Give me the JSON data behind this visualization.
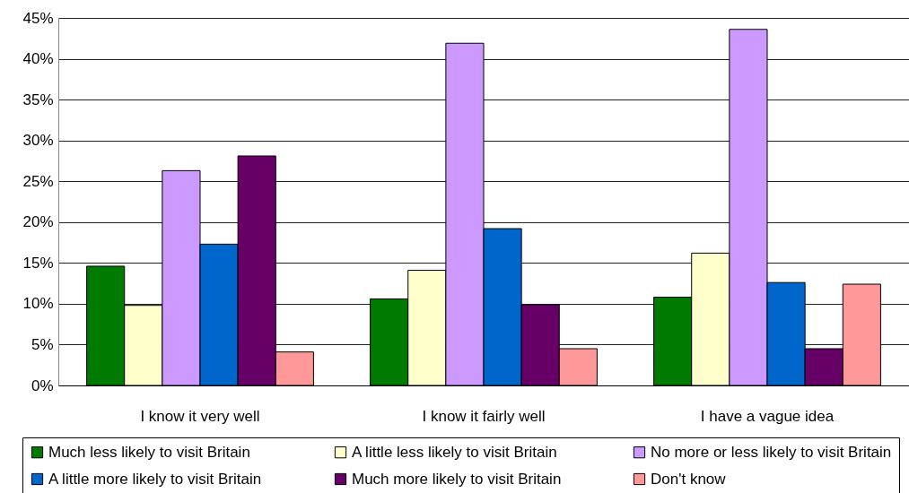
{
  "chart_data": {
    "type": "bar",
    "categories": [
      "I know it very well",
      "I know it fairly well",
      "I have a vague idea"
    ],
    "series": [
      {
        "name": "Much less likely to visit Britain",
        "color": "#007a00",
        "values": [
          14.6,
          10.6,
          10.8
        ]
      },
      {
        "name": "A little less likely to visit Britain",
        "color": "#ffffcc",
        "values": [
          9.8,
          14.1,
          16.2
        ]
      },
      {
        "name": "No more or less likely to visit Britain",
        "color": "#cc99ff",
        "values": [
          26.3,
          41.9,
          43.6
        ]
      },
      {
        "name": "A little more likely to visit Britain",
        "color": "#0066cc",
        "values": [
          17.3,
          19.2,
          12.6
        ]
      },
      {
        "name": "Much more likely to visit Britain",
        "color": "#660066",
        "values": [
          28.1,
          9.9,
          4.5
        ]
      },
      {
        "name": "Don't know",
        "color": "#ff9999",
        "values": [
          4.1,
          4.5,
          12.4
        ]
      }
    ],
    "ylim": [
      0,
      45
    ],
    "yticks": [
      {
        "value": 0,
        "label": "0%"
      },
      {
        "value": 5,
        "label": "5%"
      },
      {
        "value": 10,
        "label": "10%"
      },
      {
        "value": 15,
        "label": "15%"
      },
      {
        "value": 20,
        "label": "20%"
      },
      {
        "value": 25,
        "label": "25%"
      },
      {
        "value": 30,
        "label": "30%"
      },
      {
        "value": 35,
        "label": "35%"
      },
      {
        "value": 40,
        "label": "40%"
      },
      {
        "value": 45,
        "label": "45%"
      }
    ],
    "grid": "y",
    "legend": "bottom"
  }
}
